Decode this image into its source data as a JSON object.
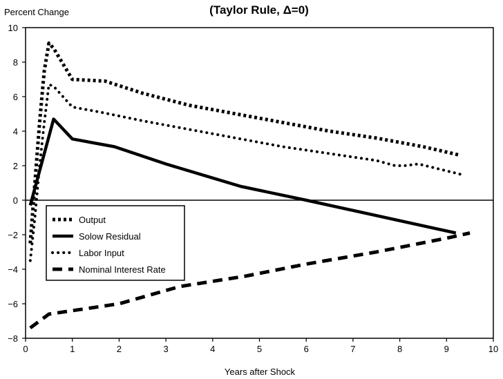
{
  "chart_data": {
    "type": "line",
    "title": "(Taylor Rule, Δ=0)",
    "xlabel": "Years after Shock",
    "ylabel": "Percent Change",
    "xlim": [
      0,
      10
    ],
    "ylim": [
      -8,
      10
    ],
    "x_ticks": [
      0,
      1,
      2,
      3,
      4,
      5,
      6,
      7,
      8,
      9,
      10
    ],
    "y_ticks": [
      -8,
      -6,
      -4,
      -2,
      0,
      2,
      4,
      6,
      8,
      10
    ],
    "zero_line": true,
    "grid": false,
    "legend_position": "lower-left",
    "series": [
      {
        "name": "Output",
        "style": "dotted-heavy",
        "x": [
          0.1,
          0.2,
          0.3,
          0.4,
          0.5,
          0.6,
          1.0,
          1.7,
          2.5,
          3.5,
          4.5,
          5.5,
          6.5,
          7.5,
          8.5,
          9.3
        ],
        "y": [
          -2.5,
          1.0,
          4.5,
          7.5,
          9.1,
          8.8,
          7.0,
          6.9,
          6.2,
          5.5,
          5.0,
          4.5,
          4.0,
          3.6,
          3.1,
          2.6
        ]
      },
      {
        "name": "Solow Residual",
        "style": "solid",
        "x": [
          0.1,
          0.6,
          1.0,
          1.9,
          3.0,
          4.6,
          6.0,
          9.2
        ],
        "y": [
          -0.3,
          4.7,
          3.55,
          3.1,
          2.1,
          0.8,
          0.0,
          -1.9
        ]
      },
      {
        "name": "Labor Input",
        "style": "dotted",
        "x": [
          0.1,
          0.2,
          0.3,
          0.4,
          0.5,
          0.6,
          1.0,
          1.6,
          2.5,
          3.5,
          4.5,
          5.5,
          6.5,
          7.5,
          7.9,
          8.1,
          8.4,
          9.3
        ],
        "y": [
          -3.5,
          -1.0,
          2.0,
          4.5,
          6.7,
          6.6,
          5.4,
          5.1,
          4.6,
          4.1,
          3.6,
          3.1,
          2.7,
          2.3,
          2.0,
          2.0,
          2.1,
          1.5
        ]
      },
      {
        "name": "Nominal Interest Rate",
        "style": "dashed",
        "x": [
          0.1,
          0.5,
          1.0,
          2.0,
          3.3,
          4.7,
          6.0,
          7.5,
          9.0,
          9.5
        ],
        "y": [
          -7.4,
          -6.6,
          -6.4,
          -6.0,
          -5.0,
          -4.4,
          -3.7,
          -3.0,
          -2.2,
          -1.9
        ]
      }
    ]
  }
}
